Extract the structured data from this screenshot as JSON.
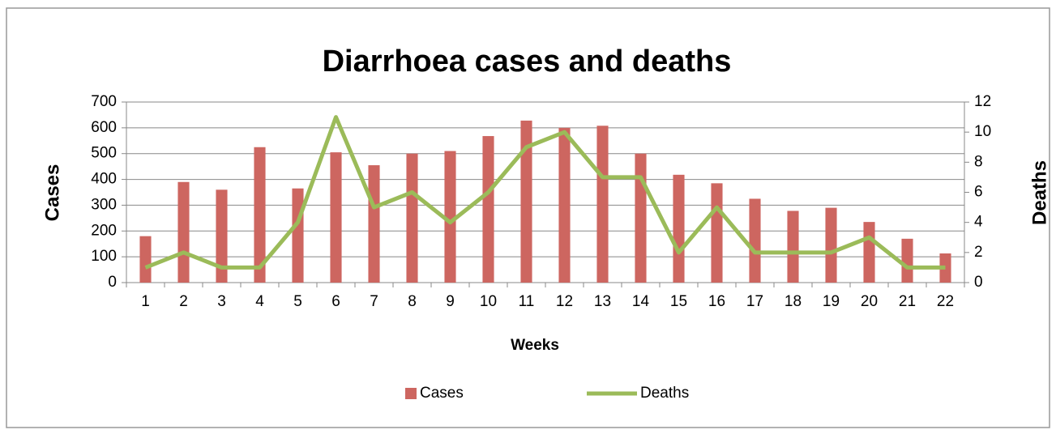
{
  "chart_data": {
    "type": "bar_line",
    "title": "Diarrhoea cases and deaths",
    "xlabel": "Weeks",
    "ylabel": "Cases",
    "y2label": "Deaths",
    "categories": [
      "1",
      "2",
      "3",
      "4",
      "5",
      "6",
      "7",
      "8",
      "9",
      "10",
      "11",
      "12",
      "13",
      "14",
      "15",
      "16",
      "17",
      "18",
      "19",
      "20",
      "21",
      "22"
    ],
    "series": [
      {
        "name": "Cases",
        "type": "bar",
        "color": "#cd6660",
        "values": [
          180,
          390,
          360,
          525,
          365,
          505,
          455,
          500,
          510,
          568,
          628,
          600,
          608,
          500,
          418,
          385,
          325,
          278,
          290,
          235,
          170,
          113
        ]
      },
      {
        "name": "Deaths",
        "type": "line",
        "axis": "y2",
        "color": "#9bbb59",
        "values": [
          1,
          2,
          1,
          1,
          4,
          11,
          5,
          6,
          4,
          6,
          9,
          10,
          7,
          7,
          2,
          5,
          2,
          2,
          2,
          3,
          1,
          1
        ]
      }
    ],
    "ylim": [
      0,
      700
    ],
    "yticks": [
      0,
      100,
      200,
      300,
      400,
      500,
      600,
      700
    ],
    "y2lim": [
      0,
      12
    ],
    "y2ticks": [
      0,
      2,
      4,
      6,
      8,
      10,
      12
    ],
    "grid": true,
    "legend": "bottom"
  }
}
